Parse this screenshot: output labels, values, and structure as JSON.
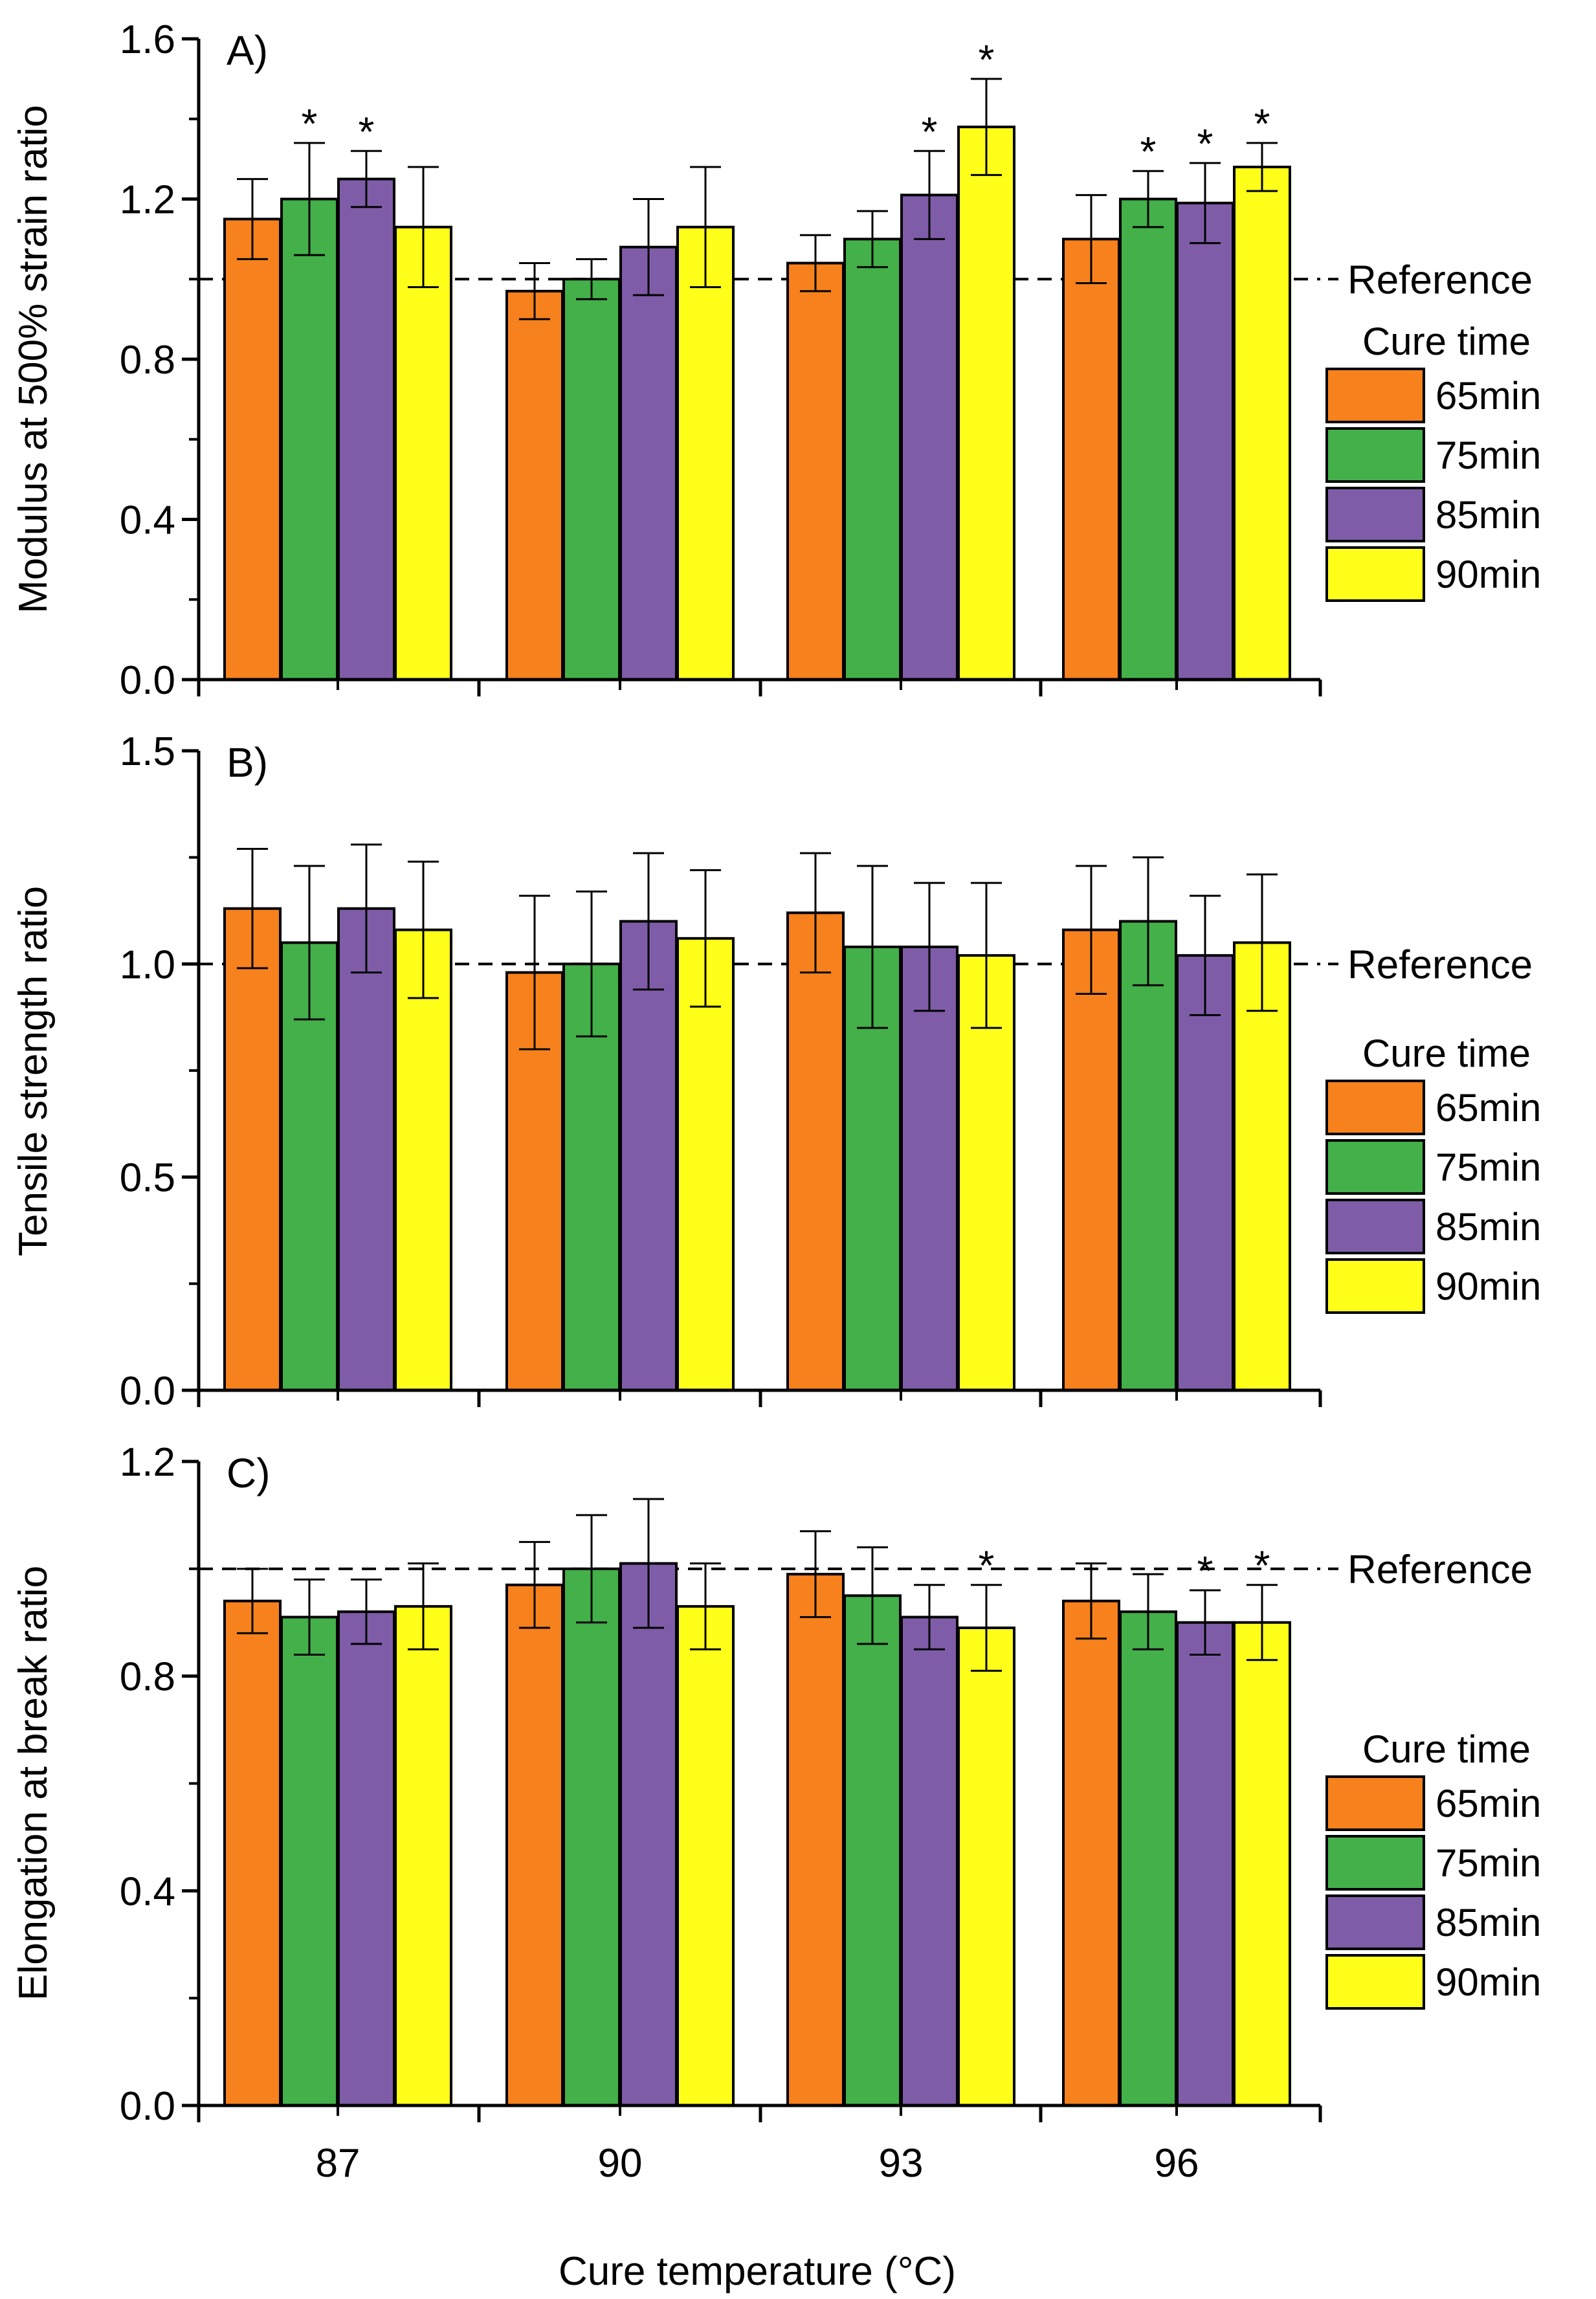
{
  "chart_data": {
    "xlabel": "Cure temperature (°C)",
    "categories": [
      "87",
      "90",
      "93",
      "96"
    ],
    "legend_title": "Cure time",
    "series_names": [
      "65min",
      "75min",
      "85min",
      "90min"
    ],
    "colors": [
      "#f7811c",
      "#43b049",
      "#7f5ca8",
      "#ffff1a"
    ],
    "reference_value": 1.0,
    "reference_label": "Reference",
    "panels": [
      {
        "type": "bar",
        "title": "A)",
        "ylabel": "Modulus at 500% strain ratio",
        "ylim": [
          0,
          1.6
        ],
        "yticks": [
          "0.0",
          "0.4",
          "0.8",
          "1.2",
          "1.6"
        ],
        "ytick_values": [
          0,
          0.4,
          0.8,
          1.2,
          1.6
        ],
        "series": [
          {
            "name": "65min",
            "values": [
              1.15,
              0.97,
              1.04,
              1.1
            ],
            "errors": [
              0.1,
              0.07,
              0.07,
              0.11
            ],
            "stars": [
              "",
              "",
              "",
              ""
            ]
          },
          {
            "name": "75min",
            "values": [
              1.2,
              1.0,
              1.1,
              1.2
            ],
            "errors": [
              0.14,
              0.05,
              0.07,
              0.07
            ],
            "stars": [
              "*",
              "",
              "",
              "*"
            ]
          },
          {
            "name": "85min",
            "values": [
              1.25,
              1.08,
              1.21,
              1.19
            ],
            "errors": [
              0.07,
              0.12,
              0.11,
              0.1
            ],
            "stars": [
              "*",
              "",
              "*",
              "*"
            ]
          },
          {
            "name": "90min",
            "values": [
              1.13,
              1.13,
              1.38,
              1.28
            ],
            "errors": [
              0.15,
              0.15,
              0.12,
              0.06
            ],
            "stars": [
              "",
              "",
              "*",
              "*"
            ]
          }
        ]
      },
      {
        "type": "bar",
        "title": "B)",
        "ylabel": "Tensile strength ratio",
        "ylim": [
          0,
          1.5
        ],
        "yticks": [
          "0.0",
          "0.5",
          "1.0",
          "1.5"
        ],
        "ytick_values": [
          0,
          0.5,
          1.0,
          1.5
        ],
        "series": [
          {
            "name": "65min",
            "values": [
              1.13,
              0.98,
              1.12,
              1.08
            ],
            "errors": [
              0.14,
              0.18,
              0.14,
              0.15
            ],
            "stars": [
              "",
              "",
              "",
              ""
            ]
          },
          {
            "name": "75min",
            "values": [
              1.05,
              1.0,
              1.04,
              1.1
            ],
            "errors": [
              0.18,
              0.17,
              0.19,
              0.15
            ],
            "stars": [
              "",
              "",
              "",
              ""
            ]
          },
          {
            "name": "85min",
            "values": [
              1.13,
              1.1,
              1.04,
              1.02
            ],
            "errors": [
              0.15,
              0.16,
              0.15,
              0.14
            ],
            "stars": [
              "",
              "",
              "",
              ""
            ]
          },
          {
            "name": "90min",
            "values": [
              1.08,
              1.06,
              1.02,
              1.05
            ],
            "errors": [
              0.16,
              0.16,
              0.17,
              0.16
            ],
            "stars": [
              "",
              "",
              "",
              ""
            ]
          }
        ]
      },
      {
        "type": "bar",
        "title": "C)",
        "ylabel": "Elongation at break ratio",
        "ylim": [
          0,
          1.2
        ],
        "yticks": [
          "0.0",
          "0.4",
          "0.8",
          "1.2"
        ],
        "ytick_values": [
          0,
          0.4,
          0.8,
          1.2
        ],
        "series": [
          {
            "name": "65min",
            "values": [
              0.94,
              0.97,
              0.99,
              0.94
            ],
            "errors": [
              0.06,
              0.08,
              0.08,
              0.07
            ],
            "stars": [
              "",
              "",
              "",
              ""
            ]
          },
          {
            "name": "75min",
            "values": [
              0.91,
              1.0,
              0.95,
              0.92
            ],
            "errors": [
              0.07,
              0.1,
              0.09,
              0.07
            ],
            "stars": [
              "",
              "",
              "",
              ""
            ]
          },
          {
            "name": "85min",
            "values": [
              0.92,
              1.01,
              0.91,
              0.9
            ],
            "errors": [
              0.06,
              0.12,
              0.06,
              0.06
            ],
            "stars": [
              "",
              "",
              "",
              "*"
            ]
          },
          {
            "name": "90min",
            "values": [
              0.93,
              0.93,
              0.89,
              0.9
            ],
            "errors": [
              0.08,
              0.08,
              0.08,
              0.07
            ],
            "stars": [
              "",
              "",
              "*",
              "*"
            ]
          }
        ]
      }
    ]
  }
}
